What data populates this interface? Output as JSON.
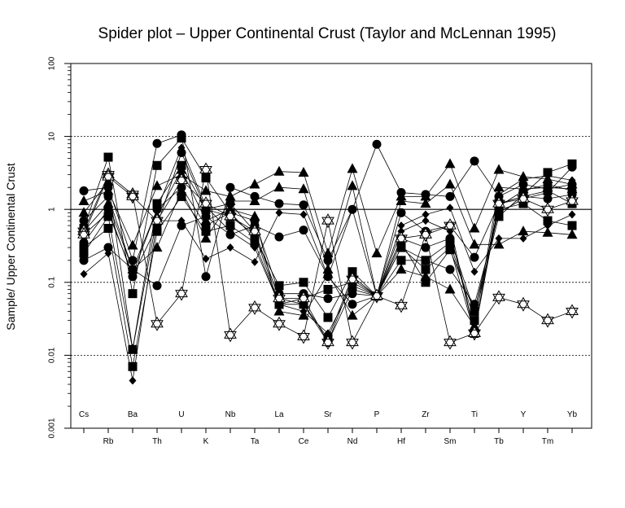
{
  "chart_data": {
    "type": "line",
    "title": "Spider plot – Upper Continental Crust (Taylor  and  McLennan 1995)",
    "ylabel": "Sample/ Upper Continental Crust",
    "xlabel": "",
    "yscale": "log",
    "ylim": [
      0.001,
      100
    ],
    "y_ticks": [
      "0.001",
      "0.01",
      "0.1",
      "1",
      "10",
      "100"
    ],
    "grid": "dotted at 0.01, 0.1, 10; solid reference line at 1",
    "categories": [
      "Cs",
      "Rb",
      "Ba",
      "Th",
      "U",
      "K",
      "Nb",
      "Ta",
      "La",
      "Ce",
      "Sr",
      "Nd",
      "P",
      "Hf",
      "Zr",
      "Sm",
      "Ti",
      "Tb",
      "Y",
      "Tm",
      "Yb"
    ],
    "series": [
      {
        "marker": "circle",
        "values": [
          1.8,
          2.0,
          0.2,
          8.0,
          10.5,
          0.12,
          2.0,
          1.5,
          1.2,
          1.15,
          0.2,
          1.0,
          7.8,
          1.7,
          1.6,
          1.5,
          4.6,
          1.5,
          2.2,
          1.9,
          2.2
        ]
      },
      {
        "marker": "circle",
        "values": [
          0.7,
          1.5,
          0.15,
          0.09,
          0.6,
          0.8,
          0.45,
          0.6,
          0.42,
          0.52,
          0.12,
          0.05,
          0.065,
          0.9,
          0.5,
          0.6,
          0.22,
          1.2,
          1.5,
          1.4,
          1.6
        ]
      },
      {
        "marker": "circle",
        "values": [
          0.2,
          0.3,
          0.15,
          1.0,
          2.0,
          0.6,
          0.9,
          0.7,
          0.07,
          0.07,
          0.06,
          0.07,
          0.065,
          0.3,
          0.2,
          0.15,
          0.05,
          0.9,
          1.4,
          1.7,
          3.8
        ]
      },
      {
        "marker": "circle",
        "values": [
          0.35,
          1.0,
          0.12,
          0.6,
          6.0,
          1.0,
          1.2,
          0.5,
          0.06,
          0.05,
          0.015,
          0.08,
          0.065,
          0.4,
          0.3,
          0.4,
          0.04,
          1.1,
          1.8,
          2.2,
          1.8
        ]
      },
      {
        "marker": "square",
        "values": [
          0.55,
          5.2,
          0.07,
          4.0,
          9.5,
          2.7,
          0.9,
          0.4,
          0.09,
          0.1,
          0.033,
          0.14,
          0.065,
          0.35,
          0.1,
          0.28,
          0.04,
          0.8,
          1.6,
          3.2,
          4.2
        ]
      },
      {
        "marker": "square",
        "values": [
          0.3,
          0.55,
          0.007,
          0.5,
          1.5,
          0.5,
          0.6,
          0.35,
          0.05,
          0.06,
          0.08,
          0.1,
          0.065,
          0.2,
          0.2,
          0.35,
          0.03,
          1.0,
          1.2,
          0.7,
          0.6
        ]
      },
      {
        "marker": "square",
        "values": [
          0.25,
          0.8,
          0.012,
          1.2,
          4.0,
          1.0,
          0.8,
          0.45,
          0.05,
          0.05,
          0.017,
          0.12,
          0.065,
          0.3,
          0.15,
          0.3,
          0.02,
          1.2,
          1.5,
          1.8,
          1.2
        ]
      },
      {
        "marker": "triangle",
        "values": [
          1.3,
          1.8,
          0.32,
          2.1,
          3.0,
          1.8,
          1.5,
          2.2,
          3.3,
          3.2,
          0.25,
          3.6,
          0.25,
          1.5,
          1.5,
          4.2,
          0.55,
          3.5,
          2.8,
          2.6,
          2.2
        ]
      },
      {
        "marker": "triangle",
        "values": [
          0.5,
          1.2,
          0.15,
          0.3,
          1.8,
          0.4,
          1.3,
          1.3,
          2.0,
          1.9,
          0.15,
          2.1,
          0.065,
          1.3,
          1.2,
          2.2,
          0.33,
          0.33,
          0.5,
          0.48,
          0.45
        ]
      },
      {
        "marker": "triangle",
        "values": [
          0.9,
          2.4,
          0.012,
          0.8,
          3.5,
          0.7,
          1.0,
          0.8,
          0.04,
          0.035,
          0.13,
          0.035,
          0.065,
          0.15,
          0.12,
          0.08,
          0.025,
          2.0,
          1.9,
          2.0,
          1.9
        ]
      },
      {
        "marker": "diamond",
        "values": [
          0.13,
          0.25,
          0.0045,
          0.7,
          0.7,
          0.21,
          0.3,
          0.19,
          0.9,
          0.85,
          0.12,
          1.0,
          0.065,
          0.6,
          0.85,
          1.05,
          0.14,
          0.4,
          0.4,
          0.6,
          0.85
        ]
      },
      {
        "marker": "diamond",
        "values": [
          0.45,
          0.9,
          0.13,
          1.0,
          7.0,
          1.1,
          0.5,
          0.3,
          0.05,
          0.04,
          0.02,
          0.09,
          0.065,
          0.5,
          0.7,
          0.5,
          0.02,
          1.6,
          2.6,
          2.9,
          2.5
        ]
      },
      {
        "marker": "star",
        "values": [
          0.5,
          3.0,
          1.6,
          0.027,
          0.07,
          3.5,
          0.019,
          0.045,
          0.027,
          0.018,
          0.7,
          0.015,
          0.065,
          0.048,
          0.45,
          0.015,
          0.02,
          0.062,
          0.05,
          0.03,
          0.04
        ]
      },
      {
        "marker": "star",
        "values": [
          0.45,
          2.8,
          1.5,
          0.7,
          2.5,
          1.2,
          0.8,
          0.5,
          0.06,
          0.06,
          0.015,
          0.11,
          0.065,
          0.4,
          0.45,
          0.6,
          0.02,
          1.2,
          1.4,
          1.0,
          1.3
        ]
      }
    ]
  }
}
